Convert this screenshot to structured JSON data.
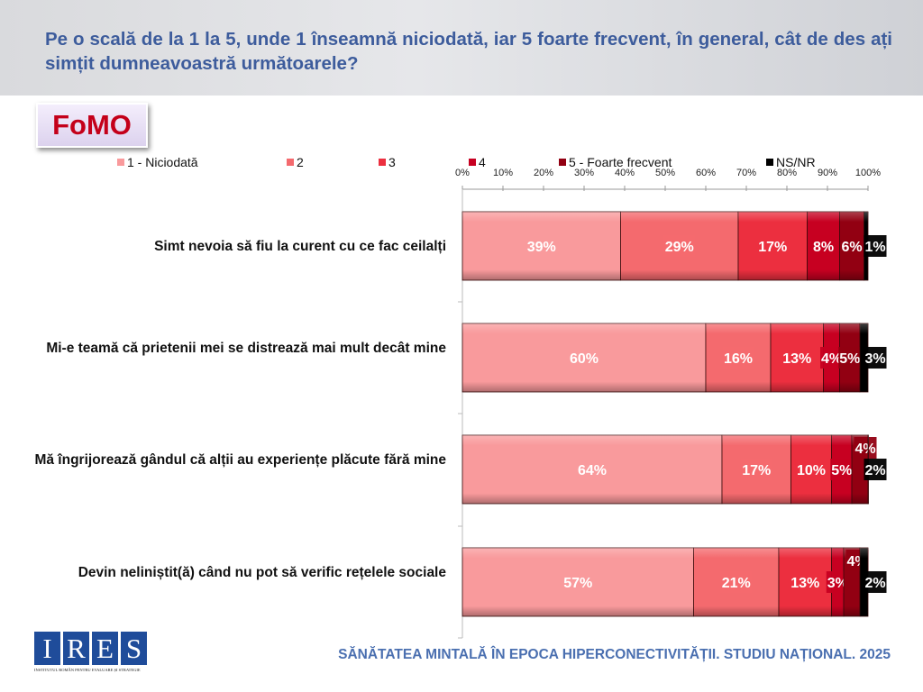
{
  "header": {
    "question": "Pe o scală de la 1 la 5, unde 1 înseamnă niciodată, iar 5 foarte frecvent, în general, cât de des ați simțit dumneavoastră următoarele?"
  },
  "badge": {
    "label": "FoMO"
  },
  "footer": {
    "text": "SĂNĂTATEA MINTALĂ ÎN EPOCA HIPERCONECTIVITĂȚII. STUDIU NAȚIONAL. 2025"
  },
  "logo": {
    "letters": [
      "I",
      "R",
      "E",
      "S"
    ],
    "subtitle": "INSTITUTUL ROMÂN PENTRU EVALUARE ȘI STRATEGIE"
  },
  "chart_data": {
    "type": "bar",
    "orientation": "horizontal",
    "stacked": true,
    "xlim": [
      0,
      100
    ],
    "x_ticks": [
      "0%",
      "10%",
      "20%",
      "30%",
      "40%",
      "50%",
      "60%",
      "70%",
      "80%",
      "90%",
      "100%"
    ],
    "legend_position": "top",
    "categories": [
      "Simt nevoia să fiu la curent cu ce fac ceilalți",
      "Mi-e teamă că prietenii mei se distrează mai mult decât mine",
      "Mă îngrijorează gândul că alții au experiențe plăcute fără mine",
      "Devin neliniștit(ă) când nu pot să verific rețelele sociale"
    ],
    "series": [
      {
        "name": "1 - Niciodată",
        "color": "#f99a9c",
        "values": [
          39,
          60,
          64,
          57
        ]
      },
      {
        "name": "2",
        "color": "#f46a6e",
        "values": [
          29,
          16,
          17,
          21
        ]
      },
      {
        "name": "3",
        "color": "#ec2f3f",
        "values": [
          17,
          13,
          10,
          13
        ]
      },
      {
        "name": "4",
        "color": "#c70021",
        "values": [
          8,
          4,
          5,
          3
        ]
      },
      {
        "name": "5 - Foarte frecvent",
        "color": "#920012",
        "values": [
          6,
          5,
          4,
          4
        ]
      },
      {
        "name": "NS/NR",
        "color": "#000000",
        "values": [
          1,
          3,
          2,
          2
        ]
      }
    ],
    "data_labels": [
      [
        "39%",
        "29%",
        "17%",
        "8%",
        "6%",
        "1%"
      ],
      [
        "60%",
        "16%",
        "13%",
        "4%",
        "5%",
        "3%"
      ],
      [
        "64%",
        "17%",
        "10%",
        "5%",
        "4%",
        "2%"
      ],
      [
        "57%",
        "21%",
        "13%",
        "3%",
        "4%",
        "2%"
      ]
    ]
  }
}
